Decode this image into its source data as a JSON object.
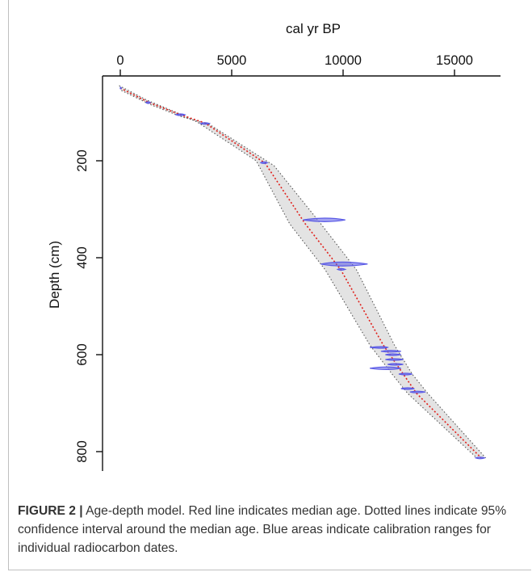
{
  "chart_data": {
    "type": "line",
    "title": "",
    "xlabel": "cal yr BP",
    "ylabel": "Depth (cm)",
    "x_axis_position": "top",
    "y_axis_inverted": true,
    "xlim": [
      -200,
      17000
    ],
    "ylim": [
      40,
      840
    ],
    "xticks": [
      0,
      5000,
      10000,
      15000
    ],
    "xtick_labels": [
      "0",
      "5000",
      "10000",
      "15000"
    ],
    "yticks": [
      200,
      400,
      600,
      800
    ],
    "ytick_labels": [
      "200",
      "400",
      "600",
      "800"
    ],
    "grid": false,
    "legend": "none",
    "colors": {
      "median": "#e0201b",
      "confidence": "#555555",
      "confidence_fill": "#d9d9d9",
      "calibration": "#5a5ae6"
    },
    "series": [
      {
        "role": "median age",
        "x": [
          0,
          1300,
          2700,
          3800,
          6500,
          8300,
          9900,
          11800,
          12700,
          13300,
          16200
        ],
        "y": [
          50,
          80,
          105,
          122,
          205,
          330,
          425,
          580,
          640,
          680,
          813
        ]
      },
      {
        "role": "95% confidence lower bound",
        "x": [
          -50,
          1200,
          2500,
          3450,
          6100,
          7600,
          9200,
          11200,
          12200,
          12900,
          16000
        ],
        "y": [
          45,
          75,
          100,
          120,
          200,
          330,
          425,
          580,
          640,
          680,
          813
        ]
      },
      {
        "role": "95% confidence upper bound",
        "x": [
          50,
          1400,
          2800,
          4000,
          6900,
          9000,
          10600,
          12300,
          13100,
          13800,
          16400
        ],
        "y": [
          55,
          85,
          110,
          125,
          210,
          330,
          425,
          580,
          640,
          680,
          813
        ]
      }
    ],
    "calibration_dates": [
      {
        "depth": 50,
        "age": 0,
        "min": 0,
        "max": 50
      },
      {
        "depth": 80,
        "age": 1250,
        "min": 1150,
        "max": 1350
      },
      {
        "depth": 105,
        "age": 2700,
        "min": 2500,
        "max": 2900
      },
      {
        "depth": 123,
        "age": 3800,
        "min": 3600,
        "max": 4000
      },
      {
        "depth": 204,
        "age": 6450,
        "min": 6300,
        "max": 6600
      },
      {
        "depth": 322,
        "age": 9200,
        "min": 8200,
        "max": 10100
      },
      {
        "depth": 413,
        "age": 9900,
        "min": 9000,
        "max": 11100
      },
      {
        "depth": 424,
        "age": 9900,
        "min": 9750,
        "max": 10100
      },
      {
        "depth": 585,
        "age": 11800,
        "min": 11200,
        "max": 12000
      },
      {
        "depth": 593,
        "age": 12100,
        "min": 11700,
        "max": 12600
      },
      {
        "depth": 600,
        "age": 12200,
        "min": 11900,
        "max": 12600
      },
      {
        "depth": 610,
        "age": 12300,
        "min": 11900,
        "max": 12700
      },
      {
        "depth": 620,
        "age": 12300,
        "min": 12000,
        "max": 12700
      },
      {
        "depth": 628,
        "age": 12000,
        "min": 11200,
        "max": 12600
      },
      {
        "depth": 640,
        "age": 12800,
        "min": 12500,
        "max": 13100
      },
      {
        "depth": 670,
        "age": 12900,
        "min": 12600,
        "max": 13200
      },
      {
        "depth": 677,
        "age": 13300,
        "min": 13000,
        "max": 13700
      },
      {
        "depth": 813,
        "age": 16150,
        "min": 15950,
        "max": 16350
      }
    ]
  },
  "caption": {
    "figure_label": "FIGURE 2 |",
    "text": " Age-depth model. Red line indicates median age. Dotted lines indicate 95% confidence interval around the median age. Blue areas indicate calibration ranges for individual radiocarbon dates."
  }
}
